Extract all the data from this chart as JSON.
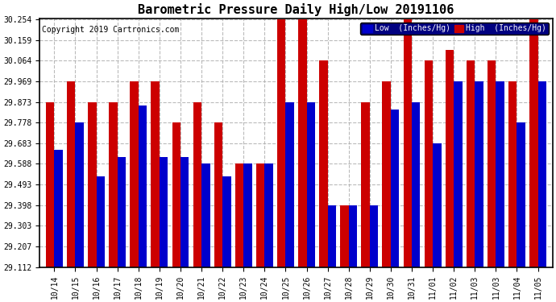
{
  "title": "Barometric Pressure Daily High/Low 20191106",
  "copyright": "Copyright 2019 Cartronics.com",
  "dates": [
    "10/14",
    "10/15",
    "10/16",
    "10/17",
    "10/18",
    "10/19",
    "10/20",
    "10/21",
    "10/22",
    "10/23",
    "10/24",
    "10/25",
    "10/26",
    "10/27",
    "10/28",
    "10/29",
    "10/30",
    "10/31",
    "11/01",
    "11/02",
    "11/03",
    "11/03",
    "11/04",
    "11/05"
  ],
  "low": [
    29.653,
    29.778,
    29.53,
    29.62,
    29.858,
    29.62,
    29.62,
    29.588,
    29.53,
    29.588,
    29.588,
    29.873,
    29.873,
    29.398,
    29.398,
    29.398,
    29.84,
    29.873,
    29.683,
    29.969,
    29.969,
    29.969,
    29.778,
    29.969
  ],
  "high": [
    29.873,
    29.969,
    29.873,
    29.873,
    29.969,
    29.969,
    29.778,
    29.873,
    29.778,
    29.588,
    29.588,
    30.254,
    30.254,
    30.064,
    29.398,
    29.873,
    29.969,
    30.254,
    30.064,
    30.112,
    30.064,
    30.064,
    29.969,
    30.254
  ],
  "ylim_min": 29.112,
  "ylim_max": 30.254,
  "yticks": [
    29.112,
    29.207,
    29.303,
    29.398,
    29.493,
    29.588,
    29.683,
    29.778,
    29.873,
    29.969,
    30.064,
    30.159,
    30.254
  ],
  "bar_width": 0.4,
  "low_color": "#0000cc",
  "high_color": "#cc0000",
  "bg_color": "#ffffff",
  "grid_color": "#aaaaaa",
  "title_fontsize": 11,
  "tick_fontsize": 7,
  "legend_low_label": "Low  (Inches/Hg)",
  "legend_high_label": "High  (Inches/Hg)"
}
